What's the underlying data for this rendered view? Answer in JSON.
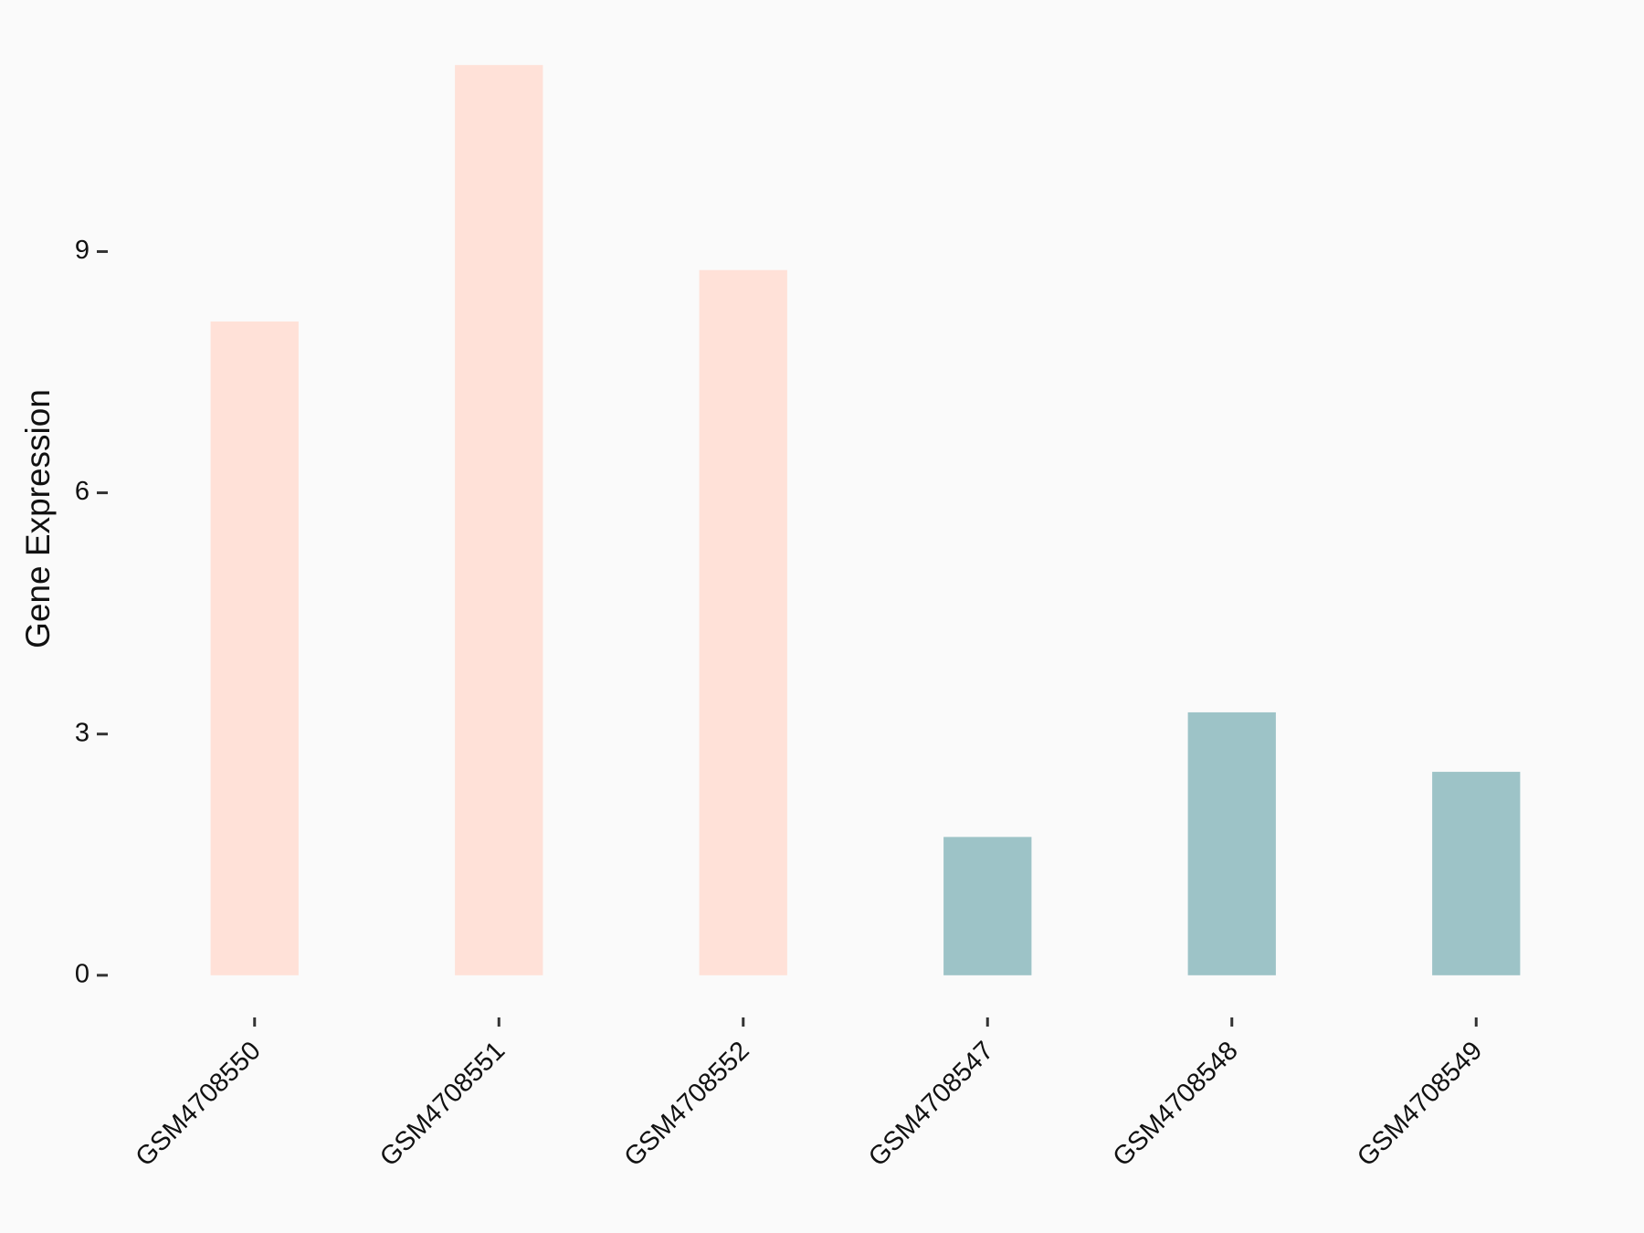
{
  "chart_data": {
    "type": "bar",
    "y_label": "Gene Expression",
    "categories": [
      "GSM4708550",
      "GSM4708551",
      "GSM4708552",
      "GSM4708547",
      "GSM4708548",
      "GSM4708549"
    ],
    "values": [
      8.13,
      11.32,
      8.77,
      1.72,
      3.27,
      2.53
    ],
    "colors": [
      "#FFE1D8",
      "#FFE1D8",
      "#FFE1D8",
      "#9DC3C7",
      "#9DC3C7",
      "#9DC3C7"
    ],
    "ylim": [
      -0.57,
      11.89
    ],
    "yticks": [
      0,
      3,
      6,
      9
    ]
  }
}
